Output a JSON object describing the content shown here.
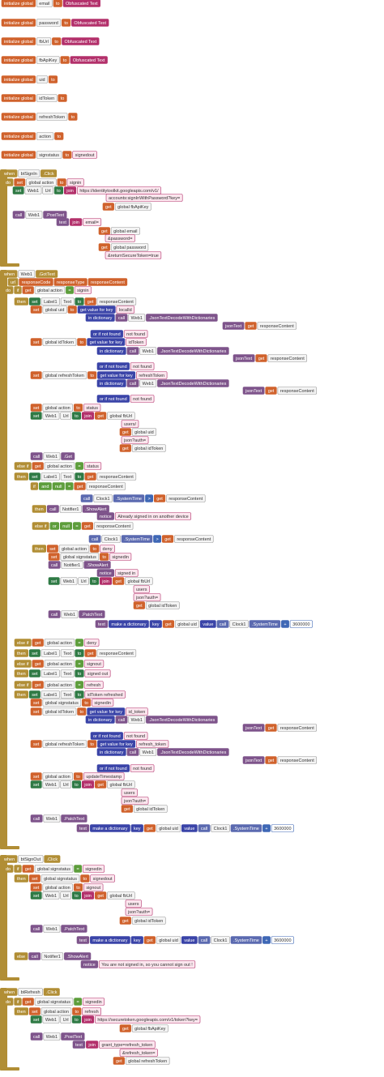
{
  "blocks": [
    {
      "rows": [
        [
          "initialize global",
          "email",
          "to",
          "Obfuscated Text"
        ],
        [
          "initialize global",
          "password",
          "to",
          "Obfuscated Text"
        ],
        [
          "initialize global",
          "fbUrl",
          "to",
          "Obfuscated Text"
        ],
        [
          "initialize global",
          "fbApiKey",
          "to",
          "Obfuscated Text"
        ],
        [
          "initialize global",
          "uid",
          "to"
        ],
        [
          "initialize global",
          "idToken",
          "to"
        ],
        [
          "initialize global",
          "refreshToken",
          "to"
        ],
        [
          "initialize global",
          "action",
          "to"
        ],
        [
          "initialize global",
          "signstatus",
          "to",
          "signedout"
        ]
      ]
    },
    {
      "rows": [
        [
          "when",
          "btSignIn",
          ".Click"
        ],
        [
          "do",
          "set",
          "global action",
          "to",
          "signin"
        ],
        [
          "set",
          "Web1",
          "Url",
          "to",
          "join",
          "https://identitytoolkit.googleapis.com/v1/"
        ],
        [
          "accounts:signInWithPassword?key="
        ],
        [
          "get",
          "global fbApiKey"
        ],
        [
          "call",
          "Web1",
          ".PostText"
        ],
        [
          "text",
          "join",
          "email="
        ],
        [
          "get",
          "global email"
        ],
        [
          "&password="
        ],
        [
          "get",
          "global password"
        ],
        [
          "&returnSecureToken=true"
        ]
      ]
    },
    {
      "rows": [
        [
          "when",
          "Web1",
          ".GotText"
        ],
        [
          "url",
          "responseCode",
          "responseType",
          "responseContent"
        ],
        [
          "do",
          "if",
          "get",
          "global action",
          "=",
          "signin"
        ],
        [
          "then",
          "set",
          "Label1",
          "Text",
          "to",
          "get",
          "responseContent"
        ],
        [
          "set",
          "global uid",
          "to",
          "get value for key",
          "localId"
        ],
        [
          "in dictionary",
          "call",
          "Web1",
          ".JsonTextDecodeWithDictionaries"
        ],
        [
          "jsonText",
          "get",
          "responseContent"
        ],
        [
          "or if not found",
          "not found"
        ],
        [
          "set",
          "global idToken",
          "to",
          "get value for key",
          "idToken"
        ],
        [
          "in dictionary",
          "call",
          "Web1",
          ".JsonTextDecodeWithDictionaries"
        ],
        [
          "jsonText",
          "get",
          "responseContent"
        ],
        [
          "or if not found",
          "not found"
        ],
        [
          "set",
          "global refreshToken",
          "to",
          "get value for key",
          "refreshToken"
        ],
        [
          "in dictionary",
          "call",
          "Web1",
          ".JsonTextDecodeWithDictionaries"
        ],
        [
          "jsonText",
          "get",
          "responseContent"
        ],
        [
          "or if not found",
          "not found"
        ],
        [
          "set",
          "global action",
          "to",
          "status"
        ],
        [
          "set",
          "Web1",
          "Url",
          "to",
          "join",
          "get",
          "global fbUrl"
        ],
        [
          "users/"
        ],
        [
          "get",
          "global uid"
        ],
        [
          "json?auth="
        ],
        [
          "get",
          "global idToken"
        ],
        [
          "call",
          "Web1",
          ".Get"
        ],
        [
          "else if",
          "get",
          "global action",
          "=",
          "status"
        ],
        [
          "then",
          "set",
          "Label1",
          "Text",
          "to",
          "get",
          "responseContent"
        ],
        [
          "if",
          "and",
          "null",
          "=",
          "get",
          "responseContent"
        ],
        [
          "call",
          "Clock1",
          ".SystemTime",
          ">",
          "get",
          "responseContent"
        ],
        [
          "then",
          "call",
          "Notifier1",
          ".ShowAlert"
        ],
        [
          "notice",
          "Already signed in on another device"
        ],
        [
          "else if",
          "or",
          "null",
          "=",
          "get",
          "responseContent"
        ],
        [
          "call",
          "Clock1",
          ".SystemTime",
          ">",
          "get",
          "responseContent"
        ],
        [
          "then",
          "set",
          "global action",
          "to",
          "deny"
        ],
        [
          "set",
          "global signstatus",
          "to",
          "signedin"
        ],
        [
          "call",
          "Notifier1",
          ".ShowAlert"
        ],
        [
          "notice",
          "signed in"
        ],
        [
          "set",
          "Web1",
          "Url",
          "to",
          "join",
          "get",
          "global fbUrl"
        ],
        [
          "users"
        ],
        [
          "json?auth="
        ],
        [
          "get",
          "global idToken"
        ],
        [
          "call",
          "Web1",
          ".PatchText"
        ],
        [
          "text",
          "make a dictionary",
          "key",
          "get",
          "global uid",
          "value",
          "call",
          "Clock1",
          ".SystemTime",
          "+",
          "3600000"
        ],
        [
          "else if",
          "get",
          "global action",
          "=",
          "deny"
        ],
        [
          "then",
          "set",
          "Label1",
          "Text",
          "to",
          "get",
          "responseContent"
        ],
        [
          "else if",
          "get",
          "global action",
          "=",
          "signout"
        ],
        [
          "then",
          "set",
          "Label1",
          "Text",
          "to",
          "signed out"
        ],
        [
          "else if",
          "get",
          "global action",
          "=",
          "refresh"
        ],
        [
          "then",
          "set",
          "Label1",
          "Text",
          "to",
          "idToken refreshed"
        ],
        [
          "set",
          "global signstatus",
          "to",
          "signedin"
        ],
        [
          "set",
          "global idToken",
          "to",
          "get value for key",
          "id_token"
        ],
        [
          "in dictionary",
          "call",
          "Web1",
          ".JsonTextDecodeWithDictionaries"
        ],
        [
          "jsonText",
          "get",
          "responseContent"
        ],
        [
          "or if not found",
          "not found"
        ],
        [
          "set",
          "global refreshToken",
          "to",
          "get value for key",
          "refresh_token"
        ],
        [
          "in dictionary",
          "call",
          "Web1",
          ".JsonTextDecodeWithDictionaries"
        ],
        [
          "jsonText",
          "get",
          "responseContent"
        ],
        [
          "or if not found",
          "not found"
        ],
        [
          "set",
          "global action",
          "to",
          "updateTimestamp"
        ],
        [
          "set",
          "Web1",
          "Url",
          "to",
          "join",
          "get",
          "global fbUrl"
        ],
        [
          "users"
        ],
        [
          "json?auth="
        ],
        [
          "get",
          "global idToken"
        ],
        [
          "call",
          "Web1",
          ".PatchText"
        ],
        [
          "text",
          "make a dictionary",
          "key",
          "get",
          "global uid",
          "value",
          "call",
          "Clock1",
          ".SystemTime",
          "+",
          "3600000"
        ]
      ]
    },
    {
      "rows": [
        [
          "when",
          "btSignOut",
          ".Click"
        ],
        [
          "do",
          "if",
          "get",
          "global signstatus",
          "=",
          "signedin"
        ],
        [
          "then",
          "set",
          "global signstatus",
          "to",
          "signedout"
        ],
        [
          "set",
          "global action",
          "to",
          "signout"
        ],
        [
          "set",
          "Web1",
          "Url",
          "to",
          "join",
          "get",
          "global fbUrl"
        ],
        [
          "users"
        ],
        [
          "json?auth="
        ],
        [
          "get",
          "global idToken"
        ],
        [
          "call",
          "Web1",
          ".PatchText"
        ],
        [
          "text",
          "make a dictionary",
          "key",
          "get",
          "global uid",
          "value",
          "call",
          "Clock1",
          ".SystemTime",
          "+",
          "3600000"
        ],
        [
          "else",
          "call",
          "Notifier1",
          ".ShowAlert"
        ],
        [
          "notice",
          "You are not signed in, so you cannot sign out !"
        ]
      ]
    },
    {
      "rows": [
        [
          "when",
          "btRefresh",
          ".Click"
        ],
        [
          "do",
          "if",
          "get",
          "global signstatus",
          "=",
          "signedin"
        ],
        [
          "then",
          "set",
          "global action",
          "to",
          "refresh"
        ],
        [
          "set",
          "Web1",
          "Url",
          "to",
          "join",
          "https://securetoken.googleapis.com/v1/token?key="
        ],
        [
          "get",
          "global fbApiKey"
        ],
        [
          "call",
          "Web1",
          ".PostText"
        ],
        [
          "text",
          "join",
          "grant_type=refresh_token"
        ],
        [
          "&refresh_token="
        ],
        [
          "get",
          "global refreshToken"
        ]
      ]
    }
  ]
}
